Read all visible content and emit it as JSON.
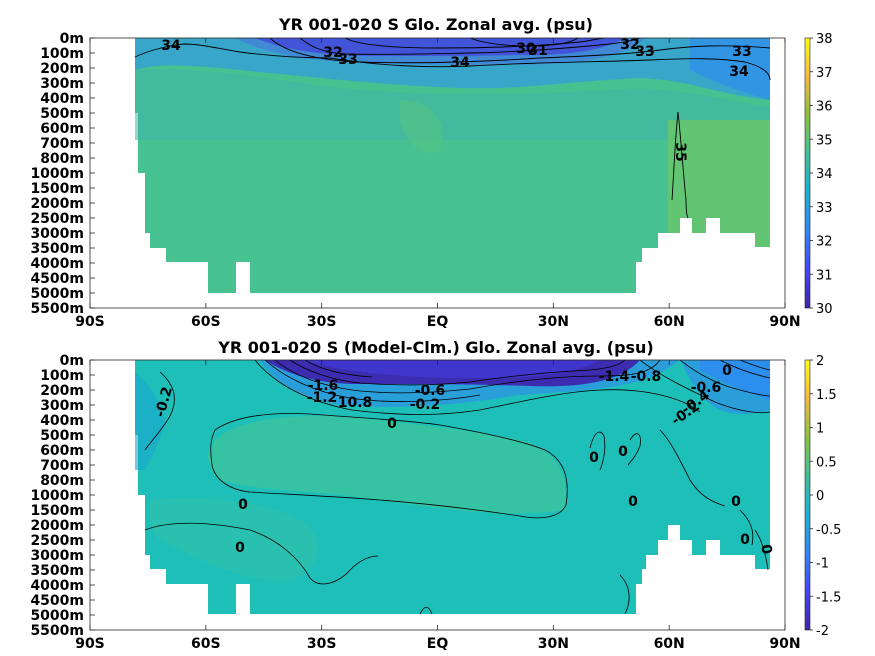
{
  "chart_data": [
    {
      "type": "heatmap",
      "title": "YR 001-020 S Glo. Zonal avg. (psu)",
      "xlabel": "",
      "ylabel": "",
      "x_ticks": [
        "90S",
        "60S",
        "30S",
        "EQ",
        "30N",
        "60N",
        "90N"
      ],
      "y_ticks": [
        "0m",
        "100m",
        "200m",
        "300m",
        "400m",
        "500m",
        "600m",
        "700m",
        "800m",
        "1000m",
        "1500m",
        "2000m",
        "2500m",
        "3000m",
        "3500m",
        "4000m",
        "4500m",
        "5000m",
        "5500m"
      ],
      "colorbar": {
        "min": 30,
        "max": 38,
        "ticks": [
          "30",
          "31",
          "32",
          "33",
          "34",
          "35",
          "36",
          "37",
          "38"
        ]
      },
      "colormap": [
        "#3e26a8",
        "#4743f8",
        "#2e87f7",
        "#1ab2d5",
        "#3ec096",
        "#8dc140",
        "#f5ba3d",
        "#f9fb15"
      ],
      "fill_colors": {
        "surface": "#38a6c9",
        "deep": "#47c18f",
        "arctic": "#62c574",
        "fresh": "#3b3ccf"
      },
      "contour_labels": [
        "34",
        "32",
        "33",
        "30",
        "31",
        "34",
        "32",
        "33",
        "33",
        "34",
        "35"
      ]
    },
    {
      "type": "heatmap",
      "title": "YR 001-020 S (Model-Clm.) Glo. Zonal avg. (psu)",
      "xlabel": "",
      "ylabel": "",
      "x_ticks": [
        "90S",
        "60S",
        "30S",
        "EQ",
        "30N",
        "60N",
        "90N"
      ],
      "y_ticks": [
        "0m",
        "100m",
        "200m",
        "300m",
        "400m",
        "500m",
        "600m",
        "700m",
        "800m",
        "1000m",
        "1500m",
        "2000m",
        "2500m",
        "3000m",
        "3500m",
        "4000m",
        "4500m",
        "5000m",
        "5500m"
      ],
      "colorbar": {
        "min": -2,
        "max": 2,
        "ticks": [
          "-2",
          "-1.5",
          "-1",
          "-0.5",
          "0",
          "0.5",
          "1",
          "1.5",
          "2"
        ]
      },
      "colormap": [
        "#3e26a8",
        "#4743f8",
        "#2e87f7",
        "#1ab2d5",
        "#3ec096",
        "#8dc140",
        "#f5ba3d",
        "#f9fb15"
      ],
      "fill_colors": {
        "base": "#1ebfb8",
        "light": "#3fc49c",
        "neg": "#2a9ed8",
        "strong_neg": "#3c2cb0"
      },
      "contour_labels": [
        "-0.2",
        "-1.6",
        "-1.2",
        "10.8",
        "-0.6",
        "-0.2",
        "-1.4",
        "-0.8",
        "0",
        "-0.6",
        "-0.4",
        "-0.2",
        "0",
        "0",
        "0",
        "0",
        "0",
        "0",
        "0",
        "0",
        "0"
      ]
    }
  ]
}
